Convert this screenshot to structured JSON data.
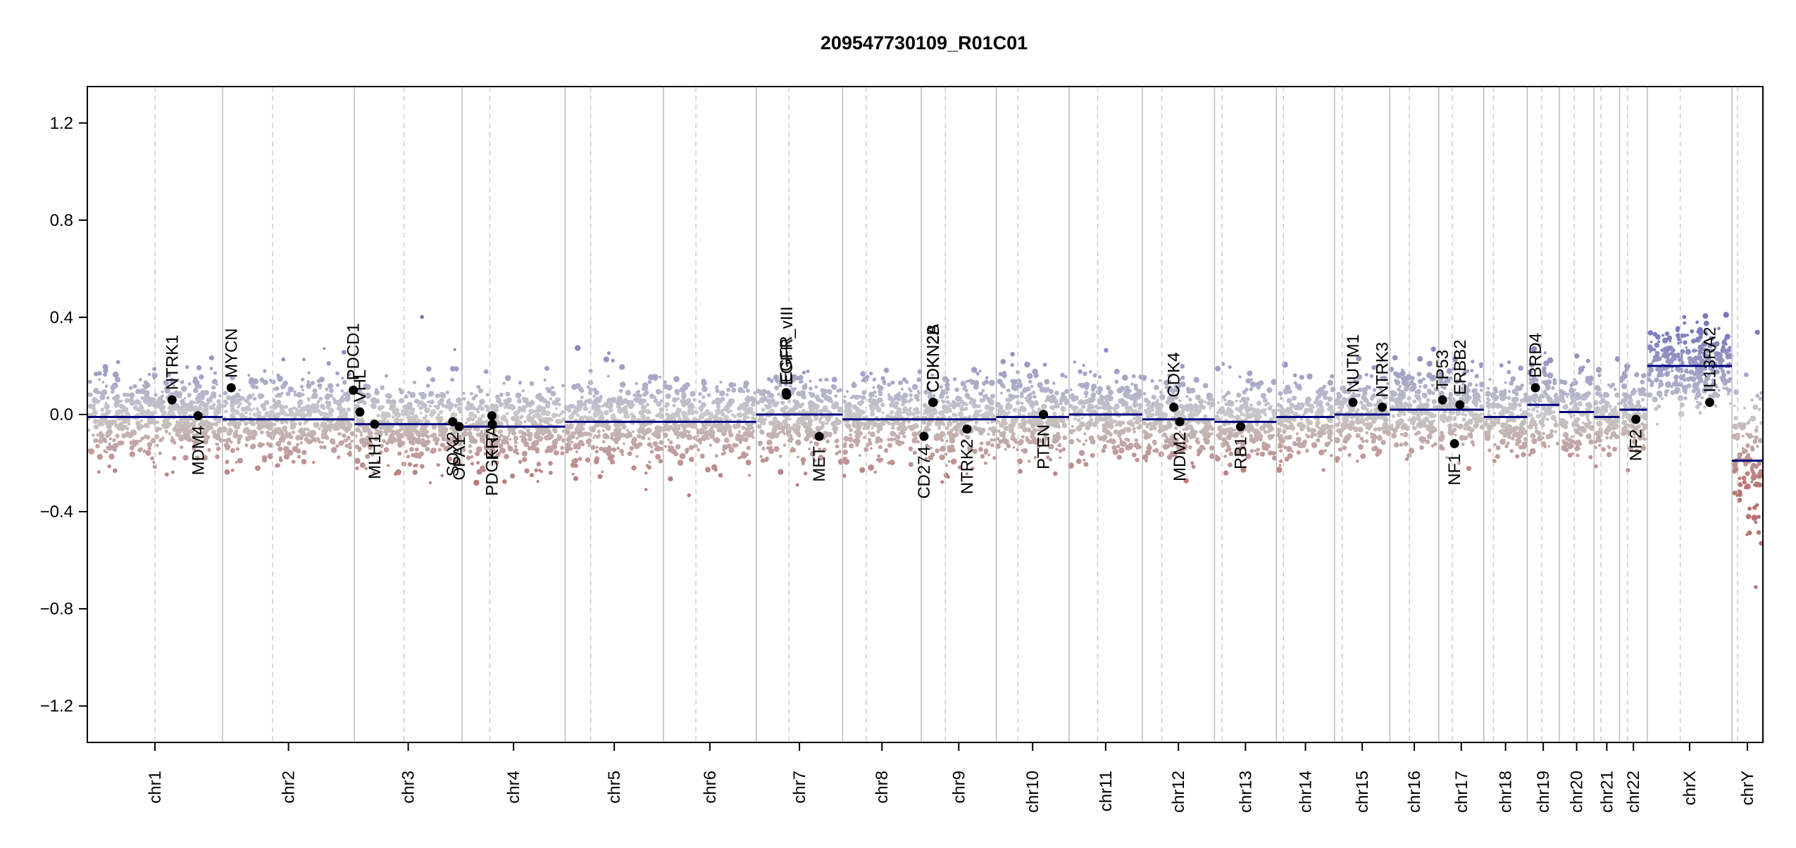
{
  "chart_data": {
    "type": "scatter",
    "title": "209547730109_R01C01",
    "xlabel": "",
    "ylabel": "",
    "ylim": [
      -1.35,
      1.35
    ],
    "yticks": [
      -1.2,
      -0.8,
      -0.4,
      0.0,
      0.4,
      0.8,
      1.2
    ],
    "ytick_labels": [
      "−1.2",
      "−0.8",
      "−0.4",
      "0.0",
      "0.4",
      "0.8",
      "1.2"
    ],
    "grid": false,
    "legend": "none",
    "colors": {
      "segment": "#000080",
      "gain": "#8080c0",
      "neutral": "#c8c8c8",
      "loss": "#b07070",
      "gene_point": "#000000",
      "chrom_border": "#bbbbbb",
      "centromere": "#cccccc"
    },
    "chromosomes": [
      {
        "name": "chr1",
        "length": 249,
        "centromere": 0.5
      },
      {
        "name": "chr2",
        "length": 243,
        "centromere": 0.38
      },
      {
        "name": "chr3",
        "length": 198,
        "centromere": 0.46
      },
      {
        "name": "chr4",
        "length": 190,
        "centromere": 0.27
      },
      {
        "name": "chr5",
        "length": 181,
        "centromere": 0.26
      },
      {
        "name": "chr6",
        "length": 171,
        "centromere": 0.35
      },
      {
        "name": "chr7",
        "length": 159,
        "centromere": 0.38
      },
      {
        "name": "chr8",
        "length": 145,
        "centromere": 0.3
      },
      {
        "name": "chr9",
        "length": 138,
        "centromere": 0.32
      },
      {
        "name": "chr10",
        "length": 134,
        "centromere": 0.3
      },
      {
        "name": "chr11",
        "length": 135,
        "centromere": 0.39
      },
      {
        "name": "chr12",
        "length": 133,
        "centromere": 0.27
      },
      {
        "name": "chr13",
        "length": 114,
        "centromere": 0.12
      },
      {
        "name": "chr14",
        "length": 107,
        "centromere": 0.12
      },
      {
        "name": "chr15",
        "length": 102,
        "centromere": 0.14
      },
      {
        "name": "chr16",
        "length": 90,
        "centromere": 0.4
      },
      {
        "name": "chr17",
        "length": 83,
        "centromere": 0.3
      },
      {
        "name": "chr18",
        "length": 80,
        "centromere": 0.22
      },
      {
        "name": "chr19",
        "length": 59,
        "centromere": 0.45
      },
      {
        "name": "chr20",
        "length": 64,
        "centromere": 0.43
      },
      {
        "name": "chr21",
        "length": 47,
        "centromere": 0.27
      },
      {
        "name": "chr22",
        "length": 51,
        "centromere": 0.29
      },
      {
        "name": "chrX",
        "length": 156,
        "centromere": 0.39
      },
      {
        "name": "chrY",
        "length": 57,
        "centromere": 0.18
      }
    ],
    "segments": [
      {
        "chr": "chr1",
        "start": 0,
        "end": 249,
        "value": -0.01
      },
      {
        "chr": "chr2",
        "start": 0,
        "end": 243,
        "value": -0.02
      },
      {
        "chr": "chr3",
        "start": 0,
        "end": 198,
        "value": -0.04
      },
      {
        "chr": "chr4",
        "start": 0,
        "end": 190,
        "value": -0.05
      },
      {
        "chr": "chr5",
        "start": 0,
        "end": 181,
        "value": -0.03
      },
      {
        "chr": "chr6",
        "start": 0,
        "end": 171,
        "value": -0.03
      },
      {
        "chr": "chr7",
        "start": 0,
        "end": 159,
        "value": 0.0
      },
      {
        "chr": "chr8",
        "start": 0,
        "end": 145,
        "value": -0.02
      },
      {
        "chr": "chr9",
        "start": 0,
        "end": 138,
        "value": -0.02
      },
      {
        "chr": "chr10",
        "start": 0,
        "end": 134,
        "value": -0.01
      },
      {
        "chr": "chr11",
        "start": 0,
        "end": 135,
        "value": 0.0
      },
      {
        "chr": "chr12",
        "start": 0,
        "end": 133,
        "value": -0.02
      },
      {
        "chr": "chr13",
        "start": 0,
        "end": 114,
        "value": -0.03
      },
      {
        "chr": "chr14",
        "start": 0,
        "end": 107,
        "value": -0.01
      },
      {
        "chr": "chr15",
        "start": 0,
        "end": 102,
        "value": 0.0
      },
      {
        "chr": "chr16",
        "start": 0,
        "end": 90,
        "value": 0.02
      },
      {
        "chr": "chr17",
        "start": 0,
        "end": 83,
        "value": 0.02
      },
      {
        "chr": "chr18",
        "start": 0,
        "end": 80,
        "value": -0.01
      },
      {
        "chr": "chr19",
        "start": 0,
        "end": 59,
        "value": 0.04
      },
      {
        "chr": "chr20",
        "start": 0,
        "end": 64,
        "value": 0.01
      },
      {
        "chr": "chr21",
        "start": 0,
        "end": 47,
        "value": -0.01
      },
      {
        "chr": "chr22",
        "start": 0,
        "end": 51,
        "value": 0.02
      },
      {
        "chr": "chrX",
        "start": 0,
        "end": 156,
        "value": 0.2
      },
      {
        "chr": "chrY",
        "start": 0,
        "end": 57,
        "value": -0.19
      }
    ],
    "genes": [
      {
        "name": "NTRK1",
        "chr": "chr1",
        "pos": 156,
        "value": 0.06,
        "label_side": "up"
      },
      {
        "name": "MDM4",
        "chr": "chr1",
        "pos": 204,
        "value": -0.005,
        "label_side": "down"
      },
      {
        "name": "MYCN",
        "chr": "chr2",
        "pos": 16,
        "value": 0.11,
        "label_side": "up"
      },
      {
        "name": "PDCD1",
        "chr": "chr2",
        "pos": 241,
        "value": 0.1,
        "label_side": "up"
      },
      {
        "name": "VHL",
        "chr": "chr3",
        "pos": 10,
        "value": 0.01,
        "label_side": "up"
      },
      {
        "name": "MLH1",
        "chr": "chr3",
        "pos": 37,
        "value": -0.04,
        "label_side": "down"
      },
      {
        "name": "SOX2",
        "chr": "chr3",
        "pos": 181,
        "value": -0.03,
        "label_side": "down"
      },
      {
        "name": "OPA1",
        "chr": "chr3",
        "pos": 193,
        "value": -0.05,
        "label_side": "down"
      },
      {
        "name": "PDGFRA",
        "chr": "chr4",
        "pos": 55,
        "value": -0.005,
        "label_side": "down"
      },
      {
        "name": "KIT",
        "chr": "chr4",
        "pos": 56,
        "value": -0.04,
        "label_side": "down"
      },
      {
        "name": "EGFR",
        "chr": "chr7",
        "pos": 55,
        "value": 0.09,
        "label_side": "up"
      },
      {
        "name": "EGFR_vIII",
        "chr": "chr7",
        "pos": 56,
        "value": 0.08,
        "label_side": "up"
      },
      {
        "name": "MET",
        "chr": "chr7",
        "pos": 116,
        "value": -0.09,
        "label_side": "down"
      },
      {
        "name": "CD274",
        "chr": "chr9",
        "pos": 5,
        "value": -0.09,
        "label_side": "down"
      },
      {
        "name": "CDKN2A",
        "chr": "chr9",
        "pos": 21,
        "value": 0.05,
        "label_side": "up"
      },
      {
        "name": "CDKN2B",
        "chr": "chr9",
        "pos": 22,
        "value": 0.05,
        "label_side": "up"
      },
      {
        "name": "NTRK2",
        "chr": "chr9",
        "pos": 84,
        "value": -0.06,
        "label_side": "down"
      },
      {
        "name": "PTEN",
        "chr": "chr10",
        "pos": 87,
        "value": 0.0,
        "label_side": "down"
      },
      {
        "name": "CDK4",
        "chr": "chr12",
        "pos": 58,
        "value": 0.03,
        "label_side": "up"
      },
      {
        "name": "MDM2",
        "chr": "chr12",
        "pos": 69,
        "value": -0.03,
        "label_side": "down"
      },
      {
        "name": "RB1",
        "chr": "chr13",
        "pos": 48,
        "value": -0.05,
        "label_side": "down"
      },
      {
        "name": "NUTM1",
        "chr": "chr15",
        "pos": 34,
        "value": 0.05,
        "label_side": "up"
      },
      {
        "name": "NTRK3",
        "chr": "chr15",
        "pos": 88,
        "value": 0.03,
        "label_side": "up"
      },
      {
        "name": "TP53",
        "chr": "chr17",
        "pos": 7,
        "value": 0.06,
        "label_side": "up"
      },
      {
        "name": "NF1",
        "chr": "chr17",
        "pos": 29,
        "value": -0.12,
        "label_side": "down"
      },
      {
        "name": "ERBB2",
        "chr": "chr17",
        "pos": 39,
        "value": 0.04,
        "label_side": "up"
      },
      {
        "name": "BRD4",
        "chr": "chr19",
        "pos": 15,
        "value": 0.11,
        "label_side": "up"
      },
      {
        "name": "NF2",
        "chr": "chr22",
        "pos": 30,
        "value": -0.02,
        "label_side": "down"
      },
      {
        "name": "IL13RA2",
        "chr": "chrX",
        "pos": 115,
        "value": 0.05,
        "label_side": "up"
      }
    ]
  }
}
